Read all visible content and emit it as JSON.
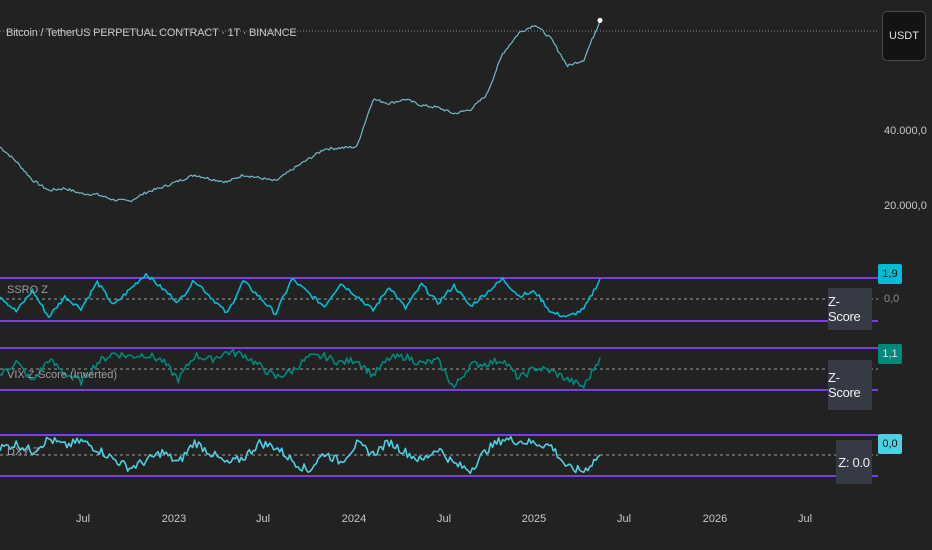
{
  "header": {
    "title": "Bitcoin / TetherUS PERPETUAL CONTRACT · 1T · BINANCE",
    "currency": "USDT"
  },
  "price_axis": [
    "40.000,0",
    "20.000,0"
  ],
  "panes": [
    {
      "label": "SSRO Z",
      "value": "1,9",
      "zero_tick": "0,0",
      "box": "Z-Score",
      "badge_color": "#00bcd4"
    },
    {
      "label": "VIX Z-Score (Inverted)",
      "value": "1,1",
      "zero_tick": "",
      "box": "Z-Score",
      "badge_color": "#00897b"
    },
    {
      "label": "DXY Z",
      "value": "0,0",
      "zero_tick": "",
      "box": "Z: 0.0",
      "badge_color": "#4dd0e1"
    }
  ],
  "time_axis": [
    "Jul",
    "2023",
    "Jul",
    "2024",
    "Jul",
    "2025",
    "Jul",
    "2026",
    "Jul"
  ],
  "colors": {
    "background": "#222222",
    "price_line": "#74b8c8",
    "band_line": "#7b3fe0",
    "ssro_line": "#00bcd4",
    "vix_line": "#00897b",
    "dxy_line": "#4dd0e1",
    "zero_line": "#9e9e9e"
  },
  "chart_data": [
    {
      "type": "line",
      "name": "price",
      "x": [
        "2022-04",
        "2022-05",
        "2022-06",
        "2022-07",
        "2022-08",
        "2022-09",
        "2022-10",
        "2022-11",
        "2022-12",
        "2023-01",
        "2023-02",
        "2023-03",
        "2023-04",
        "2023-05",
        "2023-06",
        "2023-07",
        "2023-08",
        "2023-09",
        "2023-10",
        "2023-11",
        "2023-12",
        "2024-01",
        "2024-02",
        "2024-03",
        "2024-04",
        "2024-05",
        "2024-06",
        "2024-07",
        "2024-08",
        "2024-09",
        "2024-10",
        "2024-11",
        "2024-12",
        "2025-01",
        "2025-02",
        "2025-03",
        "2025-04",
        "2025-05"
      ],
      "values": [
        43000,
        36000,
        27000,
        22000,
        23000,
        20500,
        20000,
        17500,
        16800,
        21000,
        23500,
        26500,
        29500,
        27500,
        26000,
        29500,
        28000,
        26500,
        32000,
        37000,
        42000,
        42500,
        43000,
        66000,
        64000,
        66000,
        63000,
        62000,
        59000,
        61000,
        68000,
        88000,
        98000,
        102000,
        95000,
        82000,
        85000,
        104000
      ],
      "ylim": [
        0,
        110000
      ]
    },
    {
      "type": "line",
      "name": "SSRO Z",
      "x": [
        "2022-04",
        "2022-05",
        "2022-06",
        "2022-07",
        "2022-08",
        "2022-09",
        "2022-10",
        "2022-11",
        "2022-12",
        "2023-01",
        "2023-02",
        "2023-03",
        "2023-04",
        "2023-05",
        "2023-06",
        "2023-07",
        "2023-08",
        "2023-09",
        "2023-10",
        "2023-11",
        "2023-12",
        "2024-01",
        "2024-02",
        "2024-03",
        "2024-04",
        "2024-05",
        "2024-06",
        "2024-07",
        "2024-08",
        "2024-09",
        "2024-10",
        "2024-11",
        "2024-12",
        "2025-01",
        "2025-02",
        "2025-03",
        "2025-04",
        "2025-05"
      ],
      "values": [
        0.3,
        -1.2,
        0.8,
        -1.7,
        0.2,
        -0.9,
        1.6,
        -0.6,
        0.9,
        2.4,
        1.0,
        -0.3,
        1.8,
        0.2,
        -1.4,
        1.7,
        0.2,
        -1.4,
        1.9,
        0.6,
        -0.7,
        1.5,
        0.3,
        -1.1,
        1.2,
        -0.9,
        1.4,
        -0.4,
        1.3,
        -0.7,
        0.6,
        1.9,
        0.3,
        0.7,
        -1.3,
        -1.7,
        -1.0,
        1.9
      ],
      "ylim": [
        -2,
        2
      ]
    },
    {
      "type": "line",
      "name": "VIX Z-Score (Inverted)",
      "x": [
        "2022-04",
        "2022-05",
        "2022-06",
        "2022-07",
        "2022-08",
        "2022-09",
        "2022-10",
        "2022-11",
        "2022-12",
        "2023-01",
        "2023-02",
        "2023-03",
        "2023-04",
        "2023-05",
        "2023-06",
        "2023-07",
        "2023-08",
        "2023-09",
        "2023-10",
        "2023-11",
        "2023-12",
        "2024-01",
        "2024-02",
        "2024-03",
        "2024-04",
        "2024-05",
        "2024-06",
        "2024-07",
        "2024-08",
        "2024-09",
        "2024-10",
        "2024-11",
        "2024-12",
        "2025-01",
        "2025-02",
        "2025-03",
        "2025-04",
        "2025-05"
      ],
      "values": [
        -0.6,
        0.7,
        -1.2,
        0.9,
        -0.4,
        -1.2,
        0.6,
        1.5,
        1.2,
        1.4,
        0.8,
        -1.0,
        1.3,
        0.9,
        1.6,
        1.4,
        0.3,
        -0.8,
        -0.2,
        1.1,
        1.2,
        0.6,
        0.9,
        -0.6,
        1.0,
        1.2,
        0.5,
        0.8,
        -1.8,
        0.4,
        0.5,
        0.9,
        -0.9,
        0.1,
        -0.2,
        -1.0,
        -1.7,
        1.1
      ],
      "ylim": [
        -2,
        2
      ]
    },
    {
      "type": "line",
      "name": "DXY Z",
      "x": [
        "2022-04",
        "2022-05",
        "2022-06",
        "2022-07",
        "2022-08",
        "2022-09",
        "2022-10",
        "2022-11",
        "2022-12",
        "2023-01",
        "2023-02",
        "2023-03",
        "2023-04",
        "2023-05",
        "2023-06",
        "2023-07",
        "2023-08",
        "2023-09",
        "2023-10",
        "2023-11",
        "2023-12",
        "2024-01",
        "2024-02",
        "2024-03",
        "2024-04",
        "2024-05",
        "2024-06",
        "2024-07",
        "2024-08",
        "2024-09",
        "2024-10",
        "2024-11",
        "2024-12",
        "2025-01",
        "2025-02",
        "2025-03",
        "2025-04",
        "2025-05"
      ],
      "values": [
        0.7,
        1.1,
        0.4,
        1.6,
        0.9,
        1.4,
        0.6,
        -0.4,
        -1.3,
        -0.6,
        0.3,
        -0.8,
        1.3,
        0.2,
        -0.9,
        -0.3,
        1.2,
        0.8,
        -0.5,
        -1.6,
        0.2,
        -0.7,
        1.1,
        0.1,
        1.3,
        0.3,
        -0.6,
        0.7,
        -0.9,
        -1.5,
        0.5,
        1.6,
        1.4,
        1.2,
        0.9,
        -1.3,
        -1.6,
        0.0
      ],
      "ylim": [
        -2,
        2
      ]
    }
  ]
}
